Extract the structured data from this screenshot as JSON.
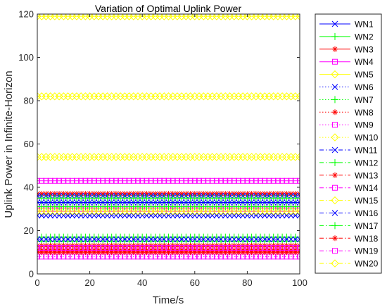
{
  "chart_data": {
    "type": "line",
    "title": "Variation of Optimal Uplink Power",
    "xlabel": "Time/s",
    "ylabel": "Uplink Power in Infinite-Horizon",
    "xlim": [
      0,
      100
    ],
    "ylim": [
      0,
      120
    ],
    "xticks": [
      "0",
      "20",
      "40",
      "60",
      "80",
      "100"
    ],
    "yticks": [
      "0",
      "20",
      "40",
      "60",
      "80",
      "100",
      "120"
    ],
    "grid": false,
    "legend_position": "outside-right",
    "x": [
      0,
      100
    ],
    "series": [
      {
        "name": "WN1",
        "value": 33,
        "color": "#0000ff",
        "marker": "x",
        "line": "solid"
      },
      {
        "name": "WN2",
        "value": 17,
        "color": "#00ff00",
        "marker": "+",
        "line": "solid"
      },
      {
        "name": "WN3",
        "value": 37,
        "color": "#ff0000",
        "marker": "*",
        "line": "solid"
      },
      {
        "name": "WN4",
        "value": 43,
        "color": "#ff00ff",
        "marker": "square",
        "line": "solid"
      },
      {
        "name": "WN5",
        "value": 119,
        "color": "#ffff00",
        "marker": "diamond",
        "line": "solid"
      },
      {
        "name": "WN6",
        "value": 27,
        "color": "#0000ff",
        "marker": "x",
        "line": "dotted"
      },
      {
        "name": "WN7",
        "value": 15,
        "color": "#00ff00",
        "marker": "+",
        "line": "dotted"
      },
      {
        "name": "WN8",
        "value": 13,
        "color": "#ff0000",
        "marker": "*",
        "line": "dotted"
      },
      {
        "name": "WN9",
        "value": 8,
        "color": "#ff00ff",
        "marker": "square",
        "line": "dotted"
      },
      {
        "name": "WN10",
        "value": 54,
        "color": "#ffff00",
        "marker": "diamond",
        "line": "dotted"
      },
      {
        "name": "WN11",
        "value": 36,
        "color": "#0000ff",
        "marker": "x",
        "line": "dashdot"
      },
      {
        "name": "WN12",
        "value": 35,
        "color": "#00ff00",
        "marker": "+",
        "line": "dashdot"
      },
      {
        "name": "WN13",
        "value": 11,
        "color": "#ff0000",
        "marker": "*",
        "line": "dashdot"
      },
      {
        "name": "WN14",
        "value": 30,
        "color": "#ff00ff",
        "marker": "square",
        "line": "dashdot"
      },
      {
        "name": "WN15",
        "value": 29,
        "color": "#ffff00",
        "marker": "diamond",
        "line": "dashdot"
      },
      {
        "name": "WN16",
        "value": 16,
        "color": "#0000ff",
        "marker": "x",
        "line": "dashdot"
      },
      {
        "name": "WN17",
        "value": 31,
        "color": "#00ff00",
        "marker": "+",
        "line": "dashdot"
      },
      {
        "name": "WN18",
        "value": 10,
        "color": "#ff0000",
        "marker": "*",
        "line": "dashdot"
      },
      {
        "name": "WN19",
        "value": 12,
        "color": "#ff00ff",
        "marker": "square",
        "line": "dashdot"
      },
      {
        "name": "WN20",
        "value": 82,
        "color": "#ffff00",
        "marker": "diamond",
        "line": "dashdot"
      }
    ]
  }
}
